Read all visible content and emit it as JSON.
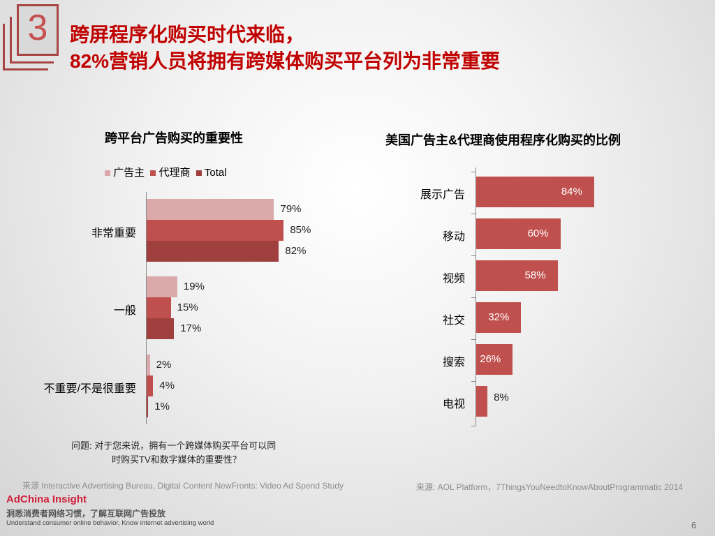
{
  "header": {
    "number": "3",
    "title_line1": "跨屏程序化购买时代来临，",
    "title_line2": "82%营销人员将拥有跨媒体购买平台列为非常重要"
  },
  "chart_data": [
    {
      "type": "bar",
      "orientation": "horizontal",
      "title": "跨平台广告购买的重要性",
      "categories": [
        "非常重要",
        "一般",
        "不重要/不是很重要"
      ],
      "series": [
        {
          "name": "广告主",
          "color": "#dba9aa",
          "values": [
            79,
            19,
            2
          ]
        },
        {
          "name": "代理商",
          "color": "#c0504d",
          "values": [
            85,
            15,
            4
          ]
        },
        {
          "name": "Total",
          "color": "#a0403e",
          "values": [
            82,
            17,
            1
          ]
        }
      ],
      "value_suffix": "%",
      "legend": "top-left",
      "xlim": [
        0,
        100
      ]
    },
    {
      "type": "bar",
      "orientation": "horizontal",
      "title": "美国广告主&代理商使用程序化购买的比例",
      "categories": [
        "展示广告",
        "移动",
        "视频",
        "社交",
        "搜索",
        "电视"
      ],
      "values": [
        84,
        60,
        58,
        32,
        26,
        8
      ],
      "color": "#c0504d",
      "value_suffix": "%",
      "xlim": [
        0,
        100
      ]
    }
  ],
  "question": {
    "line1": "问题: 对于您来说，拥有一个跨媒体购买平台可以同",
    "line2": "时购买TV和数字媒体的重要性？"
  },
  "source_left": "来源  Interactive Advertising Bureau, Digital Content NewFronts: Video Ad Spend Study",
  "source_right": "来源: AOL Platform，7ThingsYouNeedtoKnowAboutProgrammatic 2014",
  "footer": {
    "brand": "AdChina Insight",
    "slogan": "洞悉消费者网络习惯，了解互联网广告投放",
    "slogan_en": "Understand consumer online behavior, Know internet advertising world",
    "page": "6"
  }
}
